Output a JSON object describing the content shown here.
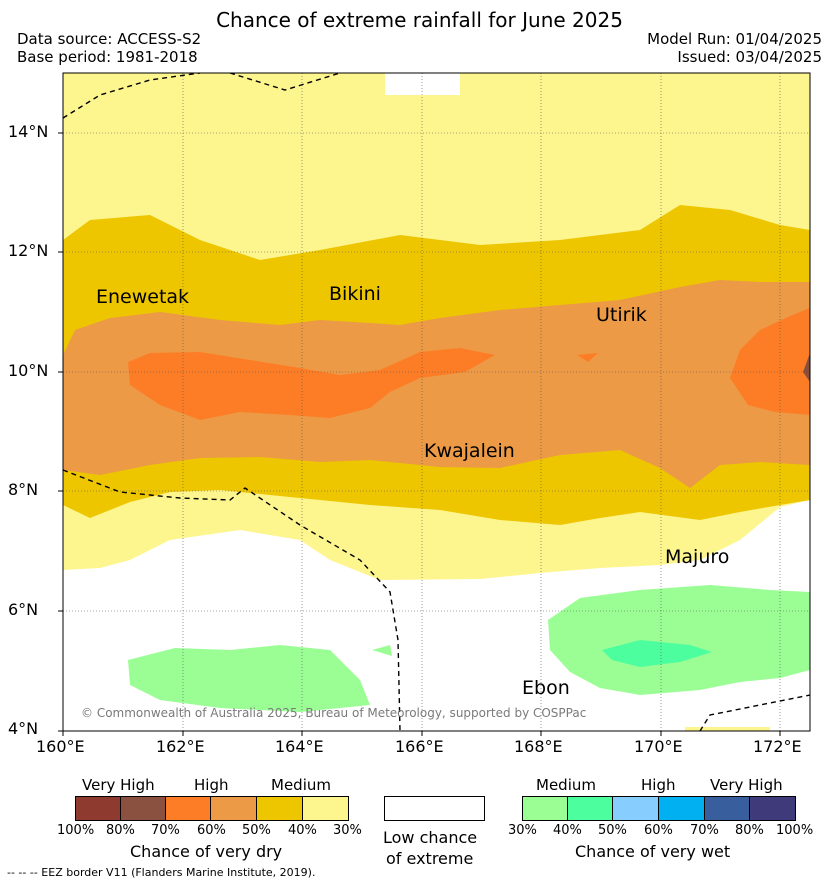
{
  "header": {
    "title": "Chance of extreme rainfall for June 2025",
    "data_source": "Data source: ACCESS-S2",
    "base_period": "Base period: 1981-2018",
    "model_run": "Model Run: 01/04/2025",
    "issued": "Issued: 03/04/2025"
  },
  "map": {
    "lon_ticks": [
      "160°E",
      "162°E",
      "164°E",
      "166°E",
      "168°E",
      "170°E",
      "172°E"
    ],
    "lat_ticks": [
      "14°N",
      "12°N",
      "10°N",
      "8°N",
      "6°N",
      "4°N"
    ],
    "places": {
      "enewetak": "Enewetak",
      "bikini": "Bikini",
      "utirik": "Utirik",
      "kwajalein": "Kwajalein",
      "majuro": "Majuro",
      "ebon": "Ebon"
    },
    "copyright": "© Commonwealth of Australia 2025, Bureau of Meteorology, supported by COSPPac",
    "colors": {
      "dry_30_40": "#fdf58d",
      "dry_40_50": "#edc600",
      "dry_50_60": "#ec9a46",
      "dry_60_70": "#fd7d26",
      "dry_70_80": "#8a4f3a",
      "wet_30_40": "#9afe95",
      "wet_40_50": "#4dfe9e"
    }
  },
  "legend": {
    "dry": {
      "categories": [
        "Very High",
        "High",
        "Medium"
      ],
      "labels": [
        "100%",
        "80%",
        "70%",
        "60%",
        "50%",
        "40%",
        "30%"
      ],
      "colors": [
        "#8f3a2f",
        "#8a5040",
        "#fd7d26",
        "#ec9a46",
        "#edc600",
        "#fdf58d"
      ],
      "caption": "Chance of very dry"
    },
    "none": {
      "line1": "Low chance",
      "line2": "of extreme"
    },
    "wet": {
      "categories": [
        "Medium",
        "High",
        "Very High"
      ],
      "labels": [
        "30%",
        "40%",
        "50%",
        "60%",
        "70%",
        "80%",
        "100%"
      ],
      "colors": [
        "#9afe95",
        "#4dfe9e",
        "#87cefe",
        "#00b0f0",
        "#385e9e",
        "#3f3a7a"
      ],
      "caption": "Chance of very wet"
    }
  },
  "footnote": "-- -- -- EEZ border V11 (Flanders Marine Institute, 2019)."
}
